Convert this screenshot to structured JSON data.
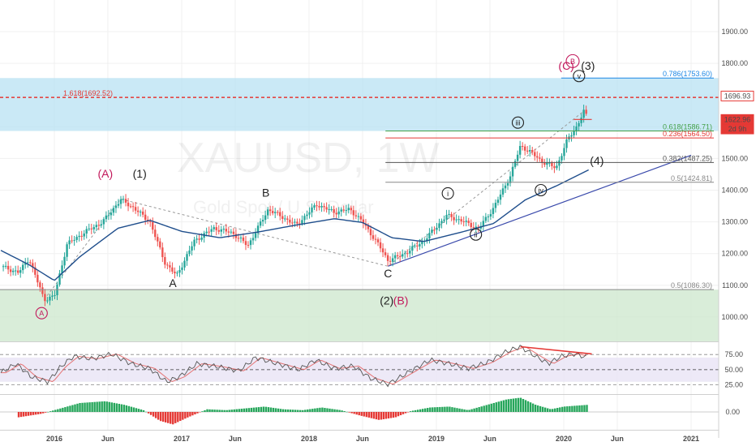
{
  "chart_data": {
    "type": "candlestick",
    "watermark": {
      "symbol": "XAUUSD, 1W",
      "description": "Gold Spot / U.S. Dollar"
    },
    "price_axis": {
      "ylim": [
        930,
        1980
      ],
      "ticks": [
        "1900.00",
        "1800.00",
        "1700.00",
        "1600.00",
        "1500.00",
        "1400.00",
        "1300.00",
        "1200.00",
        "1100.00",
        "1000.00"
      ]
    },
    "time_axis": {
      "ticks": [
        {
          "label": "2016",
          "t": 2016.0
        },
        {
          "label": "Jun",
          "t": 2016.42
        },
        {
          "label": "2017",
          "t": 2017.0
        },
        {
          "label": "Jun",
          "t": 2017.42
        },
        {
          "label": "2018",
          "t": 2018.0
        },
        {
          "label": "Jun",
          "t": 2018.42
        },
        {
          "label": "2019",
          "t": 2019.0
        },
        {
          "label": "Jun",
          "t": 2019.42
        },
        {
          "label": "2020",
          "t": 2020.0
        },
        {
          "label": "Jun",
          "t": 2020.42
        },
        {
          "label": "2021",
          "t": 2021.0
        }
      ]
    },
    "price_key": [
      [
        2015.58,
        1160
      ],
      [
        2015.72,
        1140
      ],
      [
        2015.8,
        1185
      ],
      [
        2015.92,
        1055
      ],
      [
        2016.0,
        1065
      ],
      [
        2016.1,
        1230
      ],
      [
        2016.25,
        1270
      ],
      [
        2016.38,
        1300
      ],
      [
        2016.52,
        1370
      ],
      [
        2016.62,
        1345
      ],
      [
        2016.75,
        1300
      ],
      [
        2016.87,
        1170
      ],
      [
        2016.96,
        1130
      ],
      [
        2017.1,
        1240
      ],
      [
        2017.25,
        1280
      ],
      [
        2017.4,
        1265
      ],
      [
        2017.52,
        1225
      ],
      [
        2017.68,
        1340
      ],
      [
        2017.9,
        1290
      ],
      [
        2018.06,
        1355
      ],
      [
        2018.2,
        1330
      ],
      [
        2018.32,
        1340
      ],
      [
        2018.42,
        1300
      ],
      [
        2018.55,
        1225
      ],
      [
        2018.62,
        1178
      ],
      [
        2018.75,
        1200
      ],
      [
        2018.9,
        1240
      ],
      [
        2019.08,
        1320
      ],
      [
        2019.22,
        1300
      ],
      [
        2019.33,
        1278
      ],
      [
        2019.45,
        1345
      ],
      [
        2019.58,
        1445
      ],
      [
        2019.66,
        1540
      ],
      [
        2019.74,
        1520
      ],
      [
        2019.83,
        1490
      ],
      [
        2019.94,
        1470
      ],
      [
        2020.03,
        1560
      ],
      [
        2020.1,
        1600
      ],
      [
        2020.16,
        1650
      ],
      [
        2020.19,
        1623
      ]
    ],
    "ma": [
      [
        2015.58,
        1210
      ],
      [
        2015.8,
        1165
      ],
      [
        2016.0,
        1115
      ],
      [
        2016.2,
        1190
      ],
      [
        2016.5,
        1280
      ],
      [
        2016.75,
        1305
      ],
      [
        2017.0,
        1270
      ],
      [
        2017.3,
        1250
      ],
      [
        2017.6,
        1268
      ],
      [
        2017.9,
        1290
      ],
      [
        2018.2,
        1310
      ],
      [
        2018.42,
        1298
      ],
      [
        2018.65,
        1250
      ],
      [
        2018.9,
        1238
      ],
      [
        2019.2,
        1268
      ],
      [
        2019.45,
        1295
      ],
      [
        2019.7,
        1370
      ],
      [
        2019.95,
        1415
      ],
      [
        2020.2,
        1465
      ]
    ],
    "horizontal_levels": [
      {
        "label": "0.786(1753.60)",
        "price": 1753.6,
        "color": "#1e88e5"
      },
      {
        "label": "1.618(1692.52)",
        "price": 1692.52,
        "color": "#e53935"
      },
      {
        "label": "0.618(1586.71)",
        "price": 1586.71,
        "color": "#43a047"
      },
      {
        "label": "0.236(1564.50)",
        "price": 1564.5,
        "color": "#e53935"
      },
      {
        "label": "0.382(1487.25)",
        "price": 1487.25,
        "color": "#555555"
      },
      {
        "label": "0.5(1424.81)",
        "price": 1424.81,
        "color": "#888888"
      },
      {
        "label": "0.5(1086.30)",
        "price": 1086.3,
        "color": "#888888"
      }
    ],
    "price_tags": [
      {
        "label": "1696.93",
        "price": 1696.93,
        "color": "#e53935",
        "text_color": "#e53935",
        "filled": false
      },
      {
        "label": "1622.96",
        "price": 1622.96,
        "color": "#e53935",
        "text_color": "#ffffff",
        "filled": true
      },
      {
        "label": "2d 9h",
        "price": 1593,
        "color": "#e53935",
        "text_color": "#ffffff",
        "filled": true
      }
    ],
    "wave_labels": [
      {
        "text": "(A)",
        "t": 2016.4,
        "price": 1440,
        "color": "#c2185b"
      },
      {
        "text": "(1)",
        "t": 2016.67,
        "price": 1440,
        "color": "#222222"
      },
      {
        "text": "B",
        "t": 2017.66,
        "price": 1380,
        "color": "#222222"
      },
      {
        "text": "A",
        "t": 2016.93,
        "price": 1095,
        "color": "#222222"
      },
      {
        "text": "C",
        "t": 2018.62,
        "price": 1125,
        "color": "#222222"
      },
      {
        "text": "(2)",
        "t": 2018.61,
        "price": 1040,
        "color": "#222222"
      },
      {
        "text": "(B)",
        "t": 2018.72,
        "price": 1040,
        "color": "#c2185b"
      },
      {
        "text": "(4)",
        "t": 2020.26,
        "price": 1480,
        "color": "#222222"
      },
      {
        "text": "(3)",
        "t": 2020.19,
        "price": 1780,
        "color": "#222222"
      },
      {
        "text": "(C)",
        "t": 2020.02,
        "price": 1780,
        "color": "#c2185b"
      }
    ],
    "circled_labels": [
      {
        "text": "A",
        "t": 2015.9,
        "price": 1012,
        "color": "#c2185b",
        "r": 7
      },
      {
        "text": "B",
        "t": 2020.07,
        "price": 1807,
        "color": "#c2185b",
        "r": 8
      },
      {
        "text": "v",
        "t": 2020.12,
        "price": 1760,
        "color": "#222222",
        "r": 7
      },
      {
        "text": "iii",
        "t": 2019.64,
        "price": 1613,
        "color": "#222222",
        "r": 7
      },
      {
        "text": "i",
        "t": 2019.09,
        "price": 1390,
        "color": "#222222",
        "r": 7
      },
      {
        "text": "ii",
        "t": 2019.31,
        "price": 1260,
        "color": "#222222",
        "r": 7
      },
      {
        "text": "iv",
        "t": 2019.82,
        "price": 1400,
        "color": "#222222",
        "r": 7
      }
    ],
    "rsi": {
      "levels": [
        "75.00",
        "50.00",
        "25.00"
      ],
      "points": [
        [
          2015.58,
          45
        ],
        [
          2015.7,
          60
        ],
        [
          2015.82,
          38
        ],
        [
          2015.95,
          30
        ],
        [
          2016.05,
          55
        ],
        [
          2016.15,
          72
        ],
        [
          2016.3,
          68
        ],
        [
          2016.45,
          76
        ],
        [
          2016.6,
          60
        ],
        [
          2016.75,
          52
        ],
        [
          2016.88,
          30
        ],
        [
          2016.98,
          38
        ],
        [
          2017.12,
          60
        ],
        [
          2017.28,
          55
        ],
        [
          2017.45,
          48
        ],
        [
          2017.58,
          70
        ],
        [
          2017.75,
          60
        ],
        [
          2017.92,
          50
        ],
        [
          2018.05,
          66
        ],
        [
          2018.2,
          52
        ],
        [
          2018.35,
          56
        ],
        [
          2018.48,
          36
        ],
        [
          2018.62,
          26
        ],
        [
          2018.8,
          48
        ],
        [
          2018.95,
          66
        ],
        [
          2019.1,
          60
        ],
        [
          2019.25,
          52
        ],
        [
          2019.4,
          62
        ],
        [
          2019.55,
          80
        ],
        [
          2019.66,
          88
        ],
        [
          2019.78,
          72
        ],
        [
          2019.88,
          60
        ],
        [
          2019.98,
          72
        ],
        [
          2020.08,
          76
        ],
        [
          2020.19,
          70
        ]
      ],
      "divergence": [
        [
          2019.66,
          88
        ],
        [
          2020.22,
          76
        ]
      ]
    },
    "histogram": {
      "zero_label": "0.00",
      "points": [
        [
          2015.72,
          -6
        ],
        [
          2015.9,
          -2
        ],
        [
          2016.05,
          4
        ],
        [
          2016.2,
          10
        ],
        [
          2016.4,
          12
        ],
        [
          2016.55,
          8
        ],
        [
          2016.7,
          2
        ],
        [
          2016.83,
          -10
        ],
        [
          2016.93,
          -14
        ],
        [
          2017.05,
          -6
        ],
        [
          2017.2,
          3
        ],
        [
          2017.35,
          2
        ],
        [
          2017.5,
          4
        ],
        [
          2017.65,
          6
        ],
        [
          2017.8,
          3
        ],
        [
          2017.95,
          2
        ],
        [
          2018.1,
          5
        ],
        [
          2018.25,
          2
        ],
        [
          2018.4,
          -4
        ],
        [
          2018.55,
          -9
        ],
        [
          2018.68,
          -6
        ],
        [
          2018.8,
          1
        ],
        [
          2018.95,
          5
        ],
        [
          2019.1,
          6
        ],
        [
          2019.25,
          2
        ],
        [
          2019.4,
          8
        ],
        [
          2019.55,
          14
        ],
        [
          2019.66,
          16
        ],
        [
          2019.78,
          8
        ],
        [
          2019.9,
          3
        ],
        [
          2020.0,
          6
        ],
        [
          2020.19,
          8
        ]
      ]
    }
  }
}
